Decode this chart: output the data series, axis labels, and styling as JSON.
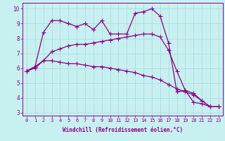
{
  "xlabel": "Windchill (Refroidissement éolien,°C)",
  "background_color": "#c8f0f0",
  "grid_color": "#aadddd",
  "line_color": "#880088",
  "hours": [
    0,
    1,
    2,
    3,
    4,
    5,
    6,
    7,
    8,
    9,
    10,
    11,
    12,
    13,
    14,
    15,
    16,
    17,
    18,
    19,
    20,
    21,
    22,
    23
  ],
  "line1": [
    5.8,
    6.1,
    8.4,
    9.2,
    9.2,
    9.0,
    8.8,
    9.0,
    8.6,
    9.2,
    8.3,
    8.3,
    8.3,
    9.7,
    9.8,
    10.0,
    9.5,
    7.7,
    4.4,
    4.5,
    3.7,
    3.6,
    3.4,
    3.4
  ],
  "line2": [
    5.8,
    6.1,
    6.5,
    6.5,
    6.4,
    6.3,
    6.3,
    6.2,
    6.1,
    6.1,
    6.0,
    5.9,
    5.8,
    5.7,
    5.5,
    5.4,
    5.2,
    4.9,
    4.6,
    4.4,
    4.2,
    3.8,
    3.4,
    3.4
  ],
  "line3": [
    5.8,
    6.0,
    6.5,
    7.1,
    7.3,
    7.5,
    7.6,
    7.6,
    7.7,
    7.8,
    7.9,
    8.0,
    8.1,
    8.2,
    8.3,
    8.3,
    8.1,
    7.2,
    5.8,
    4.5,
    4.3,
    3.8,
    3.4,
    3.4
  ],
  "ylim_bottom": 2.8,
  "ylim_top": 10.4,
  "xlim_left": -0.5,
  "xlim_right": 23.5,
  "yticks": [
    3,
    4,
    5,
    6,
    7,
    8,
    9,
    10
  ],
  "tick_fontsize": 5,
  "xlabel_fontsize": 5.5,
  "linewidth": 0.9,
  "markersize": 2.0
}
